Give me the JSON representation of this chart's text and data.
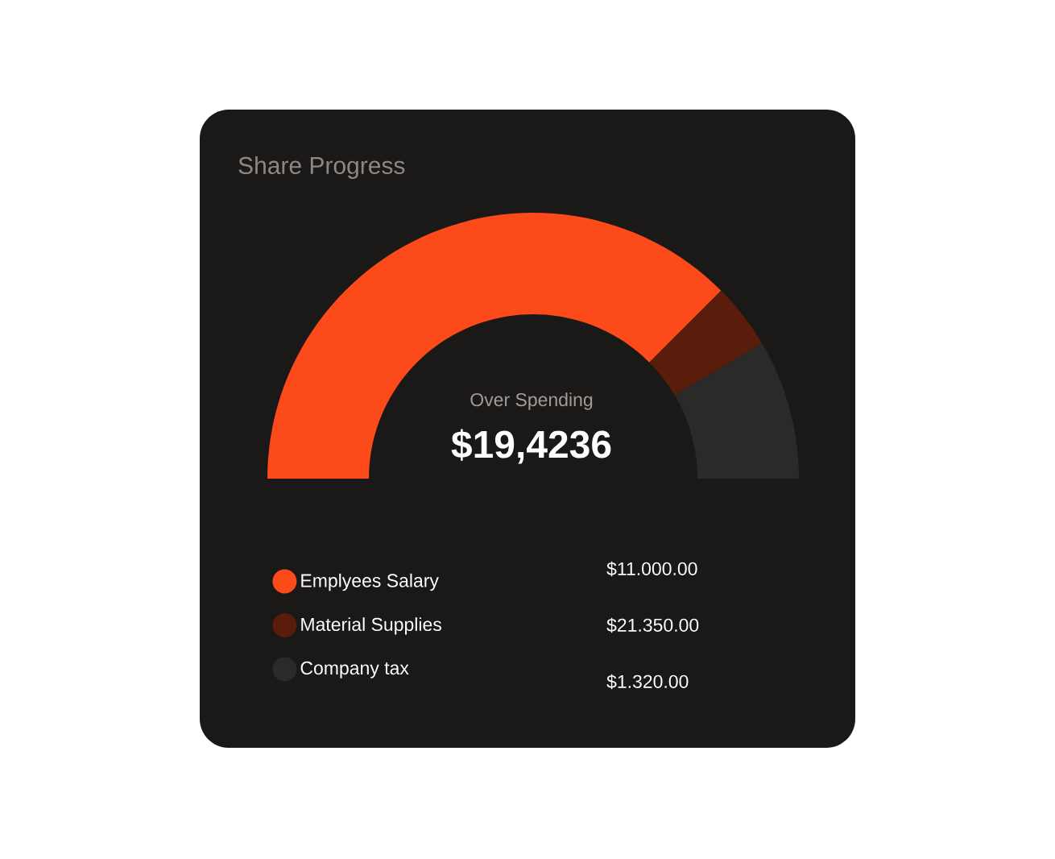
{
  "chart_data": {
    "type": "donut",
    "title": "Share Progress",
    "categories": [
      "Emplyees  Salary",
      "Material Supplies",
      "Company tax"
    ],
    "values": [
      75,
      8,
      17
    ],
    "colors": [
      "#fc4a1a",
      "#5a1c0b",
      "#2c2a29"
    ],
    "value_labels": [
      "$11.000.00",
      "$21.350.00",
      "$1.320.00"
    ],
    "annotations": [
      "Over Spending",
      "$19,4236"
    ],
    "legend": "bottom"
  }
}
